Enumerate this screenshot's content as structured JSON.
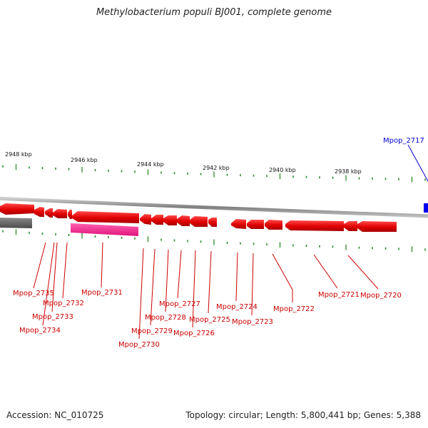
{
  "title": "Methylobacterium populi BJ001, complete genome",
  "accession": "Accession: NC_010725",
  "stats": "Topology: circular; Length: 5,800,441 bp; Genes: 5,388",
  "colors": {
    "gene_forward": "#ff0000",
    "gene_reverse": "#ff0000",
    "rna": "#ff2a8c",
    "pseudo": "#666666",
    "other_strand": "#0000ff",
    "tick": "#2e8b2e",
    "backbone": "#909090",
    "label_red": "#cc0000",
    "label_blue": "#0000cc"
  },
  "scale_labels": [
    "2948 kbp",
    "2946 kbp",
    "2944 kbp",
    "2942 kbp",
    "2940 kbp",
    "2938 kbp"
  ],
  "gene_labels": [
    {
      "text": "Mpop_2735",
      "color": "red"
    },
    {
      "text": "Mpop_2732",
      "color": "red"
    },
    {
      "text": "Mpop_2733",
      "color": "red"
    },
    {
      "text": "Mpop_2734",
      "color": "red"
    },
    {
      "text": "Mpop_2731",
      "color": "red"
    },
    {
      "text": "Mpop_2730",
      "color": "red"
    },
    {
      "text": "Mpop_2729",
      "color": "red"
    },
    {
      "text": "Mpop_2728",
      "color": "red"
    },
    {
      "text": "Mpop_2727",
      "color": "red"
    },
    {
      "text": "Mpop_2726",
      "color": "red"
    },
    {
      "text": "Mpop_2725",
      "color": "red"
    },
    {
      "text": "Mpop_2724",
      "color": "red"
    },
    {
      "text": "Mpop_2723",
      "color": "red"
    },
    {
      "text": "Mpop_2722",
      "color": "red"
    },
    {
      "text": "Mpop_2721",
      "color": "red"
    },
    {
      "text": "Mpop_2720",
      "color": "red"
    },
    {
      "text": "Mpop_2717",
      "color": "blue"
    }
  ]
}
